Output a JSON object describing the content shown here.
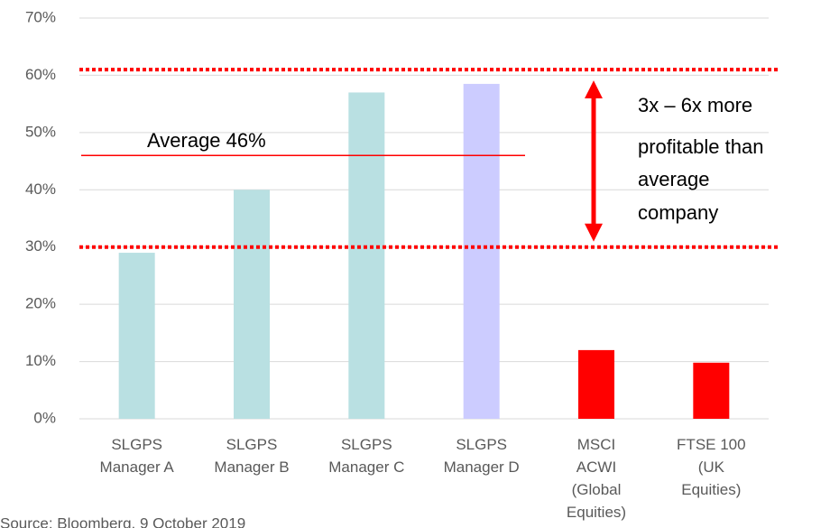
{
  "chart_data": {
    "type": "bar",
    "categories": [
      "SLGPS\nManager A",
      "SLGPS\nManager B",
      "SLGPS\nManager C",
      "SLGPS\nManager D",
      "MSCI\nACWI\n(Global\nEquities)",
      "FTSE 100\n(UK\nEquities)"
    ],
    "values": [
      29,
      40,
      57,
      58.5,
      12,
      9.8
    ],
    "colors": [
      "#b9e0e2",
      "#b9e0e2",
      "#b9e0e2",
      "#ccccff",
      "#ff0000",
      "#ff0000"
    ],
    "ylim": [
      0,
      70
    ],
    "yticks": [
      {
        "value": 0,
        "label": "0%"
      },
      {
        "value": 10,
        "label": "10%"
      },
      {
        "value": 20,
        "label": "20%"
      },
      {
        "value": 30,
        "label": "30%"
      },
      {
        "value": 40,
        "label": "40%"
      },
      {
        "value": 50,
        "label": "50%"
      },
      {
        "value": 60,
        "label": "60%"
      },
      {
        "value": 70,
        "label": "70%"
      }
    ],
    "grid": true,
    "average": {
      "label": "Average 46%",
      "value": 46
    },
    "reference_lines": [
      61,
      30
    ],
    "note": [
      "3x – 6x more",
      "profitable than",
      "average",
      "company"
    ],
    "source": "Source: Bloomberg, 9 October 2019"
  }
}
